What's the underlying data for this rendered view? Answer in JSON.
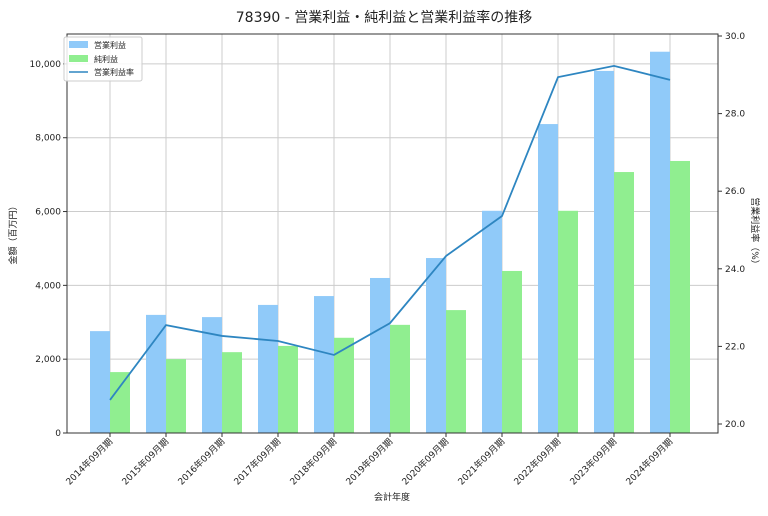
{
  "chart_data": {
    "type": "bar",
    "title": "78390 - 営業利益・純利益と営業利益率の推移",
    "xlabel": "会計年度",
    "ylabel": "金額（百万円）",
    "ylabel_right": "営業利益率（%）",
    "ylim": [
      0,
      10810
    ],
    "ylim_right": [
      20.0,
      30.0
    ],
    "yticks": [
      0,
      2000,
      4000,
      6000,
      8000,
      10000
    ],
    "ytick_labels": [
      "0",
      "2,000",
      "4,000",
      "6,000",
      "8,000",
      "10,000"
    ],
    "yticks_right": [
      20.0,
      22.0,
      24.0,
      26.0,
      28.0,
      30.0
    ],
    "ytick_labels_right": [
      "20.0",
      "22.0",
      "24.0",
      "26.0",
      "28.0",
      "30.0"
    ],
    "grid": true,
    "legend_position": "top-left",
    "categories": [
      "2014年09月期",
      "2015年09月期",
      "2016年09月期",
      "2017年09月期",
      "2018年09月期",
      "2019年09月期",
      "2020年09月期",
      "2021年09月期",
      "2022年09月期",
      "2023年09月期",
      "2024年09月期"
    ],
    "series": [
      {
        "name": "営業利益",
        "type": "bar",
        "axis": "left",
        "color": "#90caf9",
        "values": [
          2760,
          3200,
          3140,
          3470,
          3710,
          4200,
          4740,
          6020,
          8370,
          9810,
          10330
        ]
      },
      {
        "name": "純利益",
        "type": "bar",
        "axis": "left",
        "color": "#90ee90",
        "values": [
          1650,
          2000,
          2190,
          2360,
          2580,
          2930,
          3330,
          4390,
          6020,
          7070,
          7370
        ]
      },
      {
        "name": "営業利益率",
        "type": "line",
        "axis": "right",
        "color": "#2e86c1",
        "values": [
          20.62,
          22.55,
          22.27,
          22.14,
          21.78,
          22.6,
          24.33,
          25.36,
          28.94,
          29.23,
          28.87
        ]
      }
    ]
  }
}
